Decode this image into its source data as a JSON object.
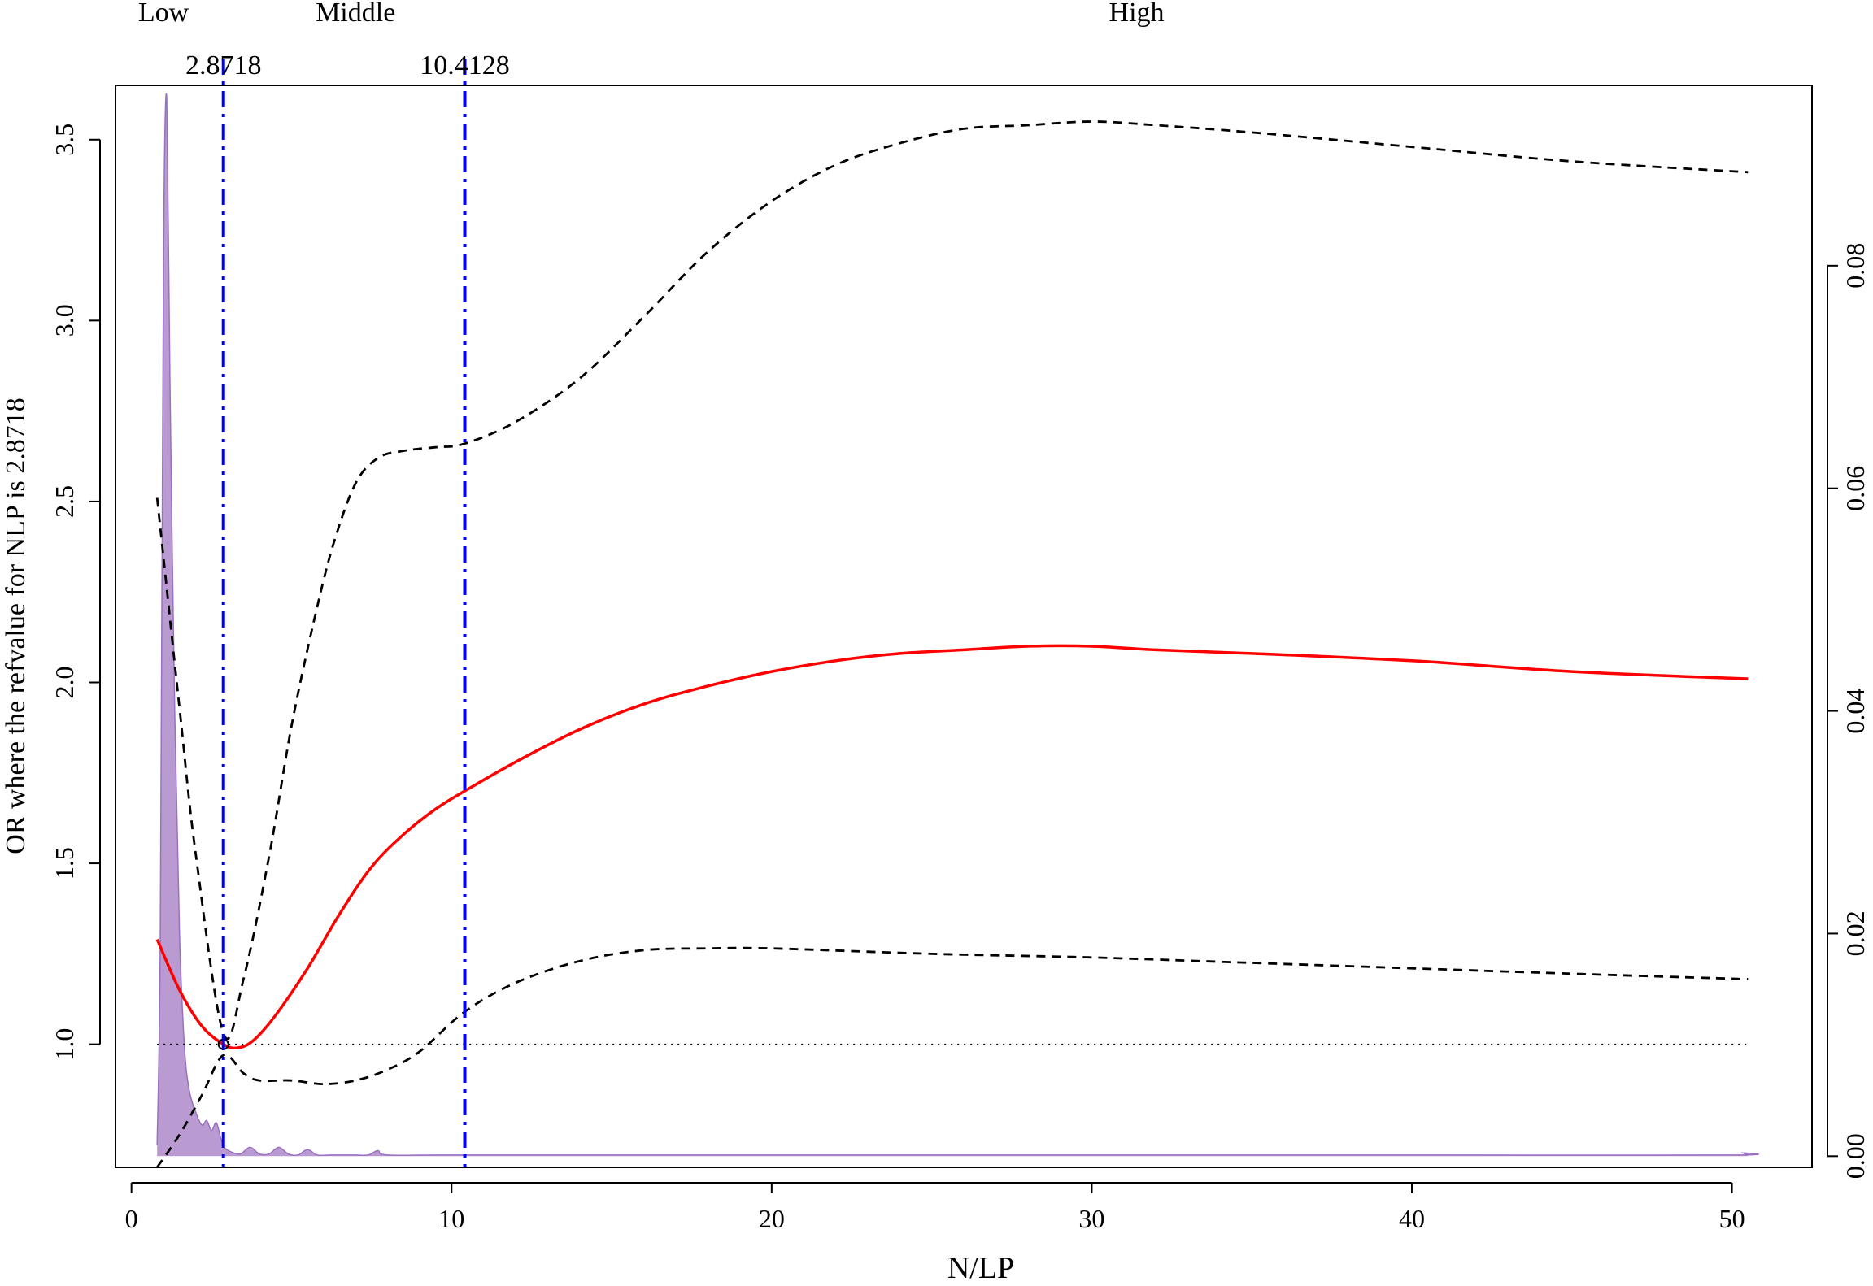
{
  "chart_data": {
    "type": "line",
    "xlabel": "N/LP",
    "ylabel": "OR where the refvalue for NLP is 2.8718",
    "xlim": [
      -0.5,
      52.5
    ],
    "ylim": [
      0.66,
      3.65
    ],
    "y2lim": [
      -0.001,
      0.0962
    ],
    "x_ticks": [
      0,
      10,
      20,
      30,
      40,
      50
    ],
    "x_tick_labels": [
      "0",
      "10",
      "20",
      "30",
      "40",
      "50"
    ],
    "y_ticks": [
      1.0,
      1.5,
      2.0,
      2.5,
      3.0,
      3.5
    ],
    "y_tick_labels": [
      "1.0",
      "1.5",
      "2.0",
      "2.5",
      "3.0",
      "3.5"
    ],
    "y2_ticks": [
      0.0,
      0.02,
      0.04,
      0.06,
      0.08
    ],
    "y2_tick_labels": [
      "0.00",
      "0.02",
      "0.04",
      "0.06",
      "0.08"
    ],
    "cutoffs": [
      {
        "x": 2.8718,
        "label": "2.8718"
      },
      {
        "x": 10.4128,
        "label": "10.4128"
      }
    ],
    "group_labels": [
      {
        "label": "Low",
        "x": 1.0
      },
      {
        "label": "Middle",
        "x": 7.0
      },
      {
        "label": "High",
        "x": 31.4
      }
    ],
    "reference": {
      "x": 2.8718,
      "y": 1.0
    },
    "colors": {
      "or_line": "#ff0000",
      "ci_line": "#000000",
      "cutoff_line": "#0000ee",
      "density_fill": "#b99ad1",
      "density_stroke": "#9a70c0"
    },
    "series": [
      {
        "name": "",
        "style": "solid",
        "x": [
          0.8,
          1.5,
          2.2,
          2.8718,
          3.3,
          3.8,
          4.5,
          5.5,
          6.5,
          7.5,
          8.5,
          9.5,
          10.4128,
          12,
          14,
          16,
          18,
          20,
          22,
          24,
          26,
          28,
          30,
          32,
          35,
          40,
          45,
          50.5
        ],
        "y": [
          1.29,
          1.15,
          1.05,
          1.0,
          0.99,
          1.01,
          1.08,
          1.21,
          1.36,
          1.49,
          1.58,
          1.65,
          1.7,
          1.78,
          1.87,
          1.94,
          1.99,
          2.03,
          2.06,
          2.08,
          2.09,
          2.1,
          2.1,
          2.09,
          2.08,
          2.06,
          2.03,
          2.01
        ]
      },
      {
        "name": "",
        "style": "dashed",
        "x": [
          0.8,
          1.5,
          2.0,
          2.8718,
          3.5,
          4.3,
          5.0,
          5.7,
          6.3,
          7.0,
          7.7,
          8.5,
          9.5,
          10.4128,
          12,
          14,
          16,
          18,
          20,
          22,
          24,
          26,
          28,
          30,
          32,
          35,
          40,
          45,
          50.5
        ],
        "y": [
          2.51,
          1.93,
          1.53,
          1.03,
          1.18,
          1.52,
          1.88,
          2.17,
          2.38,
          2.55,
          2.62,
          2.64,
          2.65,
          2.66,
          2.72,
          2.84,
          3.01,
          3.19,
          3.33,
          3.43,
          3.49,
          3.53,
          3.54,
          3.55,
          3.54,
          3.52,
          3.48,
          3.44,
          3.41
        ]
      },
      {
        "name": "",
        "style": "dashed",
        "x": [
          0.8,
          1.5,
          2.2,
          2.8718,
          3.5,
          4.0,
          5.0,
          6.0,
          7.0,
          8.0,
          9.0,
          10.4128,
          12,
          14,
          16,
          18,
          20,
          25,
          30,
          35,
          40,
          45,
          50.5
        ],
        "y": [
          0.66,
          0.75,
          0.86,
          0.97,
          0.92,
          0.9,
          0.9,
          0.89,
          0.9,
          0.93,
          0.98,
          1.09,
          1.17,
          1.23,
          1.26,
          1.265,
          1.265,
          1.25,
          1.24,
          1.225,
          1.21,
          1.195,
          1.18
        ]
      }
    ],
    "density": {
      "x": [
        0.8,
        0.9,
        1.0,
        1.1,
        1.2,
        1.35,
        1.5,
        1.65,
        1.8,
        2.0,
        2.2,
        2.35,
        2.5,
        2.65,
        2.8,
        2.9,
        3.1,
        3.4,
        3.7,
        4.0,
        4.3,
        4.6,
        4.9,
        5.2,
        5.5,
        5.8,
        6.2,
        6.6,
        7.0,
        7.4,
        7.7,
        8.0,
        10.0,
        20.0,
        30.0,
        40.0,
        50.0,
        50.3,
        50.5
      ],
      "y": [
        0.001,
        0.02,
        0.08,
        0.0951,
        0.07,
        0.04,
        0.02,
        0.01,
        0.006,
        0.004,
        0.0028,
        0.0032,
        0.0023,
        0.003,
        0.0015,
        0.0008,
        0.0004,
        0.0002,
        0.0008,
        0.0002,
        0.0002,
        0.0008,
        0.0002,
        0.0001,
        0.0006,
        0.0001,
        0.0001,
        0.0001,
        0.0001,
        0.0001,
        0.0005,
        0.0001,
        0.0001,
        0.0001,
        0.0001,
        0.0001,
        0.0001,
        0.0003,
        0.0001
      ]
    }
  }
}
